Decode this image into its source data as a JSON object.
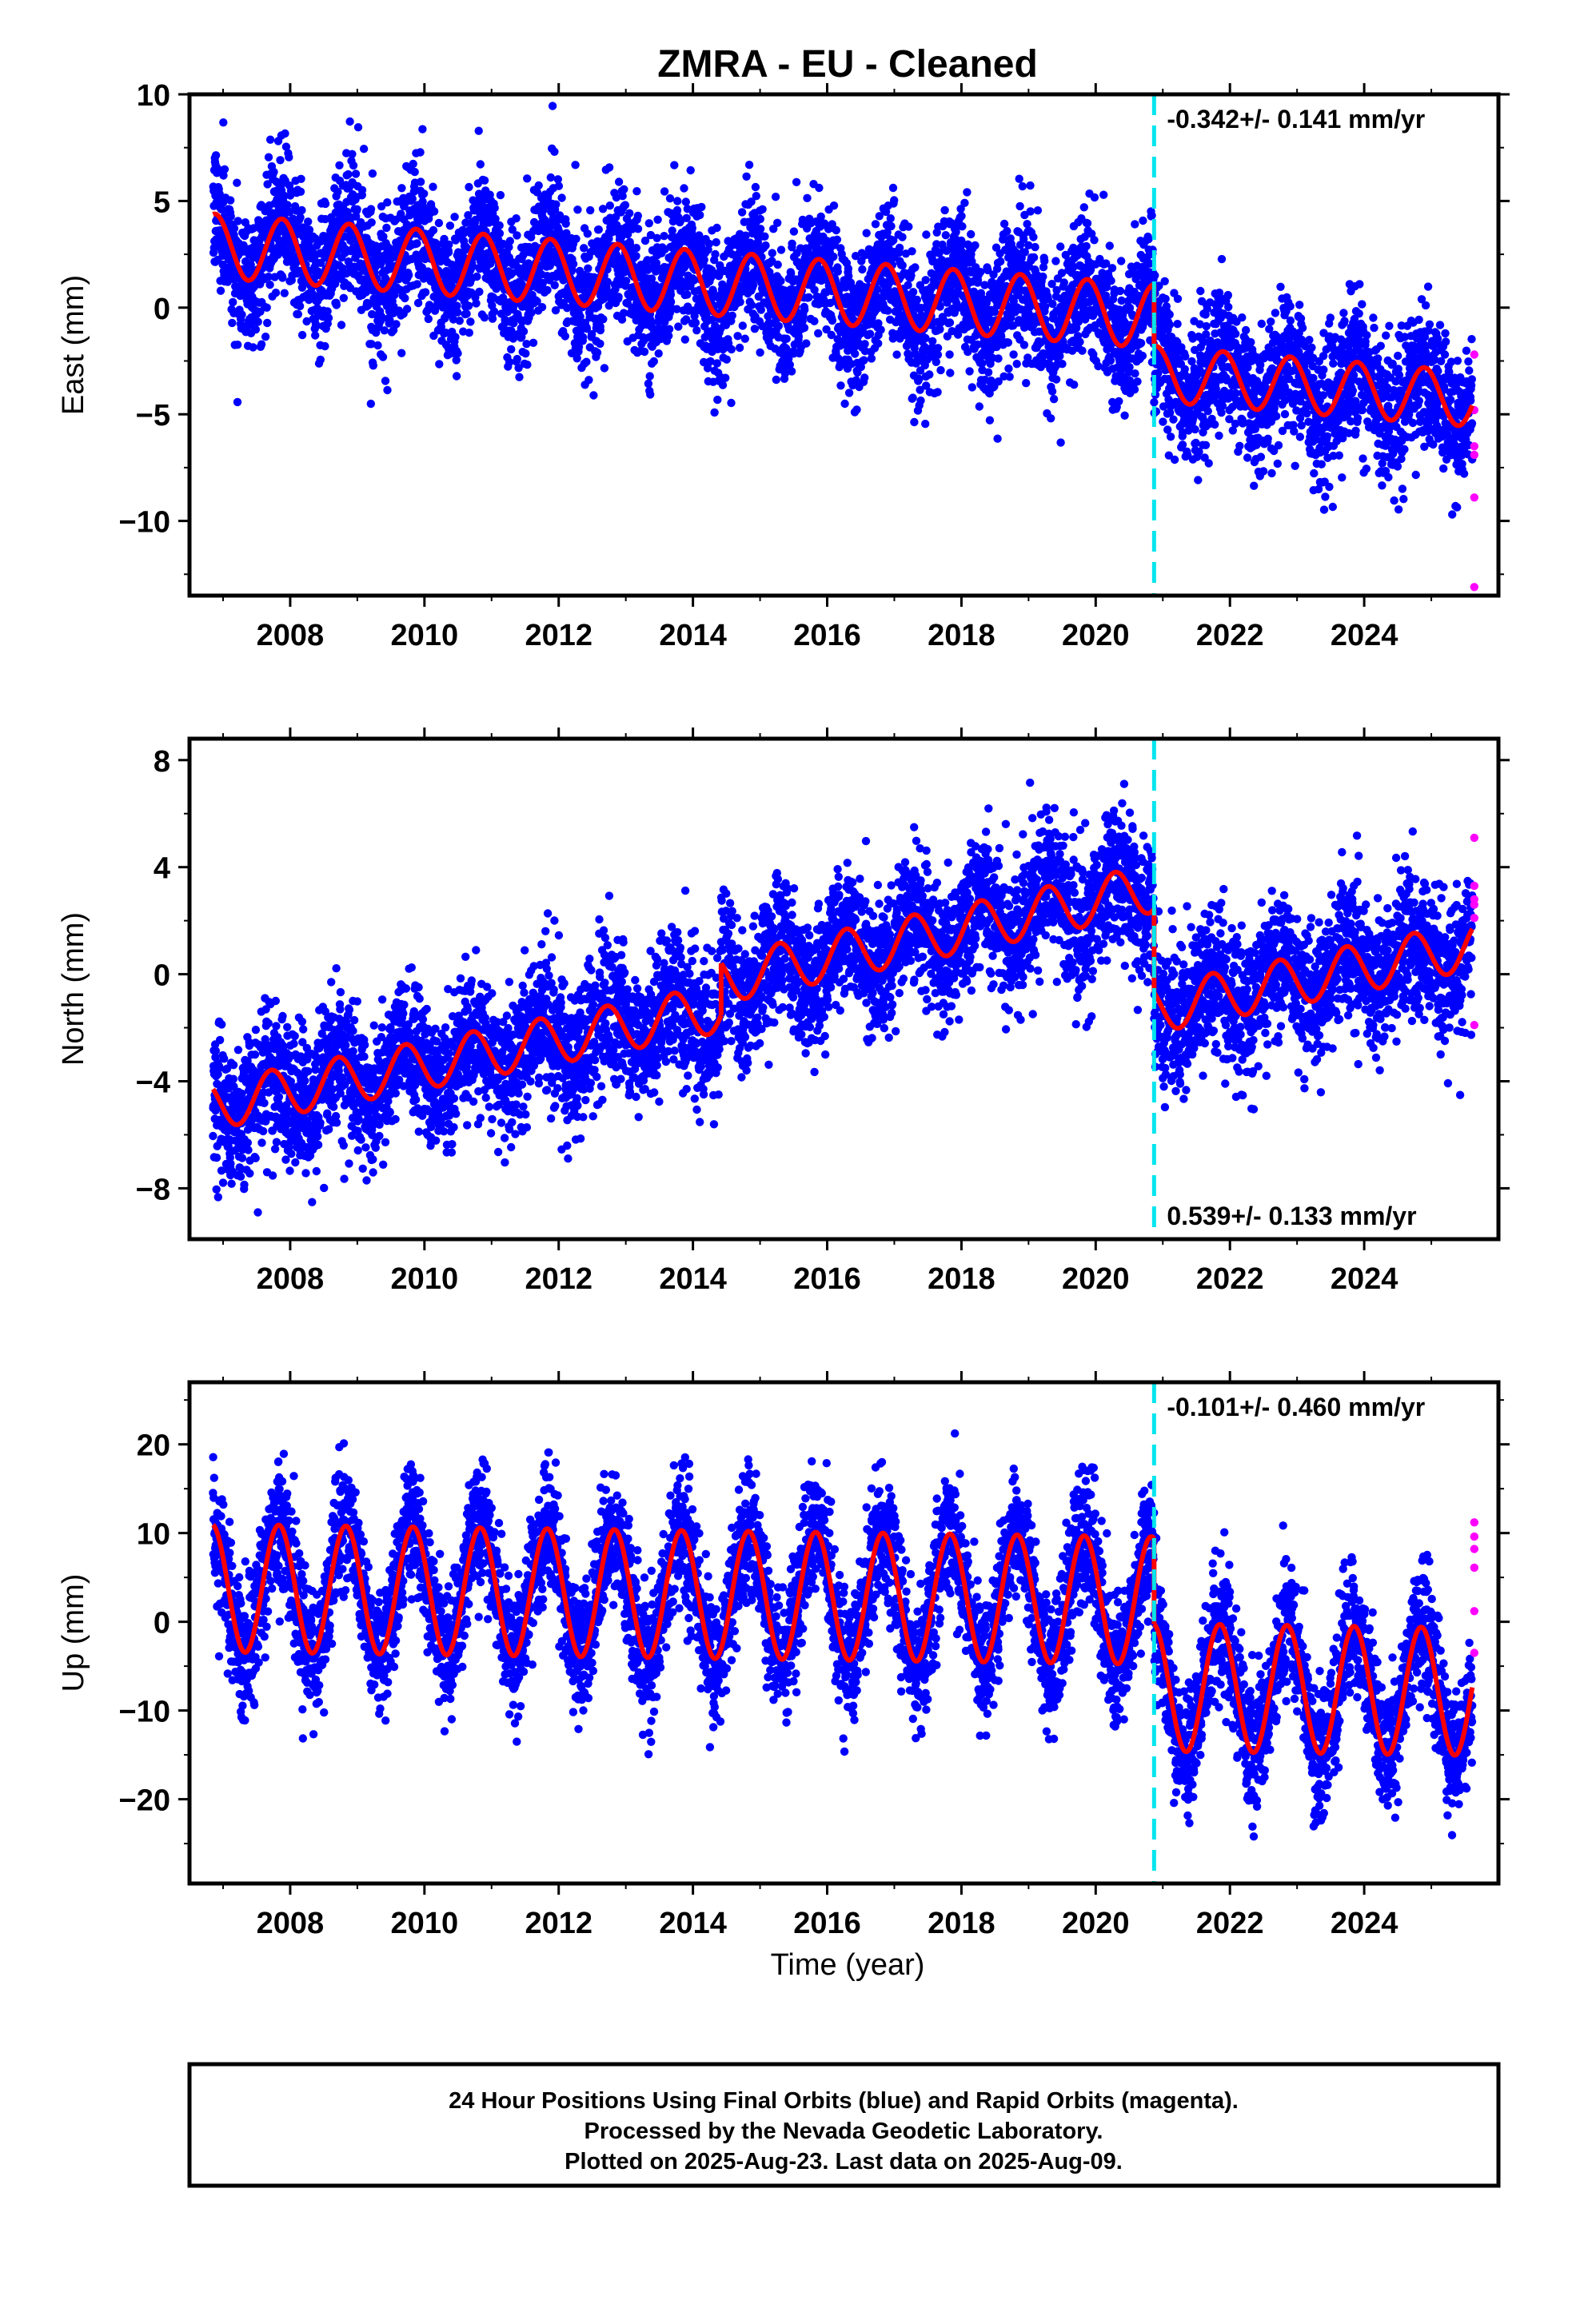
{
  "title": "ZMRA  - EU - Cleaned",
  "xlabel": "Time (year)",
  "footer": {
    "lines": [
      "24 Hour Positions Using Final Orbits (blue) and Rapid Orbits (magenta).",
      "Processed by the Nevada Geodetic Laboratory.",
      "Plotted on 2025-Aug-23. Last data on 2025-Aug-09."
    ]
  },
  "colors": {
    "final": "#0000ff",
    "rapid": "#ff00ff",
    "model": "#ff0000",
    "equipment_change": "#00e5ee",
    "frame": "#000000"
  },
  "chart_data": [
    {
      "type": "scatter",
      "panel": "east",
      "ylabel": "East (mm)",
      "ylim": [
        -13.5,
        10
      ],
      "yticks": [
        10,
        5,
        0,
        -5,
        -10
      ],
      "xlim": [
        2006.5,
        2026.0
      ],
      "xticks": [
        2008,
        2010,
        2012,
        2014,
        2016,
        2018,
        2020,
        2022,
        2024
      ],
      "rate_label": "-0.342+/- 0.141 mm/yr",
      "rate_label_pos": "top",
      "offset_epoch": 2020.87,
      "data_range": [
        2006.85,
        2025.61
      ],
      "model": {
        "segments": [
          {
            "x0": 2006.85,
            "x1": 2020.87,
            "y0": 2.9,
            "slope": -0.236,
            "amp": 1.5,
            "phase": 1.4
          },
          {
            "x0": 2020.87,
            "x1": 2025.61,
            "y0": -3.1,
            "slope": -0.25,
            "amp": 1.3,
            "phase": 1.4
          }
        ]
      },
      "noise_sd": 1.6,
      "rapid": {
        "x": 2025.64,
        "values": [
          -2.2,
          -4.8,
          -6.5,
          -6.9,
          -8.9,
          -13.1
        ]
      }
    },
    {
      "type": "scatter",
      "panel": "north",
      "ylabel": "North (mm)",
      "ylim": [
        -9.9,
        8.8
      ],
      "yticks": [
        8,
        4,
        0,
        -4,
        -8
      ],
      "xlim": [
        2006.5,
        2026.0
      ],
      "xticks": [
        2008,
        2010,
        2012,
        2014,
        2016,
        2018,
        2020,
        2022,
        2024
      ],
      "rate_label": "0.539+/- 0.133 mm/yr",
      "rate_label_pos": "bottom",
      "offset_epoch": 2020.87,
      "data_range": [
        2006.85,
        2025.61
      ],
      "model": {
        "segments": [
          {
            "x0": 2006.85,
            "x1": 2014.42,
            "y0": -4.9,
            "slope": 0.48,
            "amp": 0.9,
            "phase": 2.4
          },
          {
            "x0": 2014.42,
            "x1": 2020.87,
            "y0": -0.2,
            "slope": 0.53,
            "amp": 0.9,
            "phase": 2.4
          },
          {
            "x0": 2020.87,
            "x1": 2025.61,
            "y0": -1.3,
            "slope": 0.5,
            "amp": 0.9,
            "phase": 2.4
          }
        ]
      },
      "noise_sd": 1.3,
      "rapid": {
        "x": 2025.64,
        "values": [
          5.1,
          3.3,
          2.8,
          2.6,
          2.1,
          -1.9
        ]
      }
    },
    {
      "type": "scatter",
      "panel": "up",
      "ylabel": "Up (mm)",
      "ylim": [
        -29.5,
        27
      ],
      "yticks": [
        20,
        10,
        0,
        -10,
        -20
      ],
      "xlim": [
        2006.5,
        2026.0
      ],
      "xticks": [
        2008,
        2010,
        2012,
        2014,
        2016,
        2018,
        2020,
        2022,
        2024
      ],
      "rate_label": "-0.101+/- 0.460 mm/yr",
      "rate_label_pos": "top",
      "offset_epoch": 2020.87,
      "data_range": [
        2006.85,
        2025.61
      ],
      "model": {
        "segments": [
          {
            "x0": 2006.85,
            "x1": 2020.87,
            "y0": 3.8,
            "slope": -0.1,
            "amp": 7.2,
            "phase": 1.7
          },
          {
            "x0": 2020.87,
            "x1": 2025.61,
            "y0": -7.4,
            "slope": -0.1,
            "amp": 7.2,
            "phase": 1.7
          }
        ]
      },
      "noise_sd": 3.6,
      "rapid": {
        "x": 2025.64,
        "values": [
          11.2,
          9.6,
          8.2,
          6.1,
          1.2,
          -3.5
        ]
      }
    }
  ]
}
